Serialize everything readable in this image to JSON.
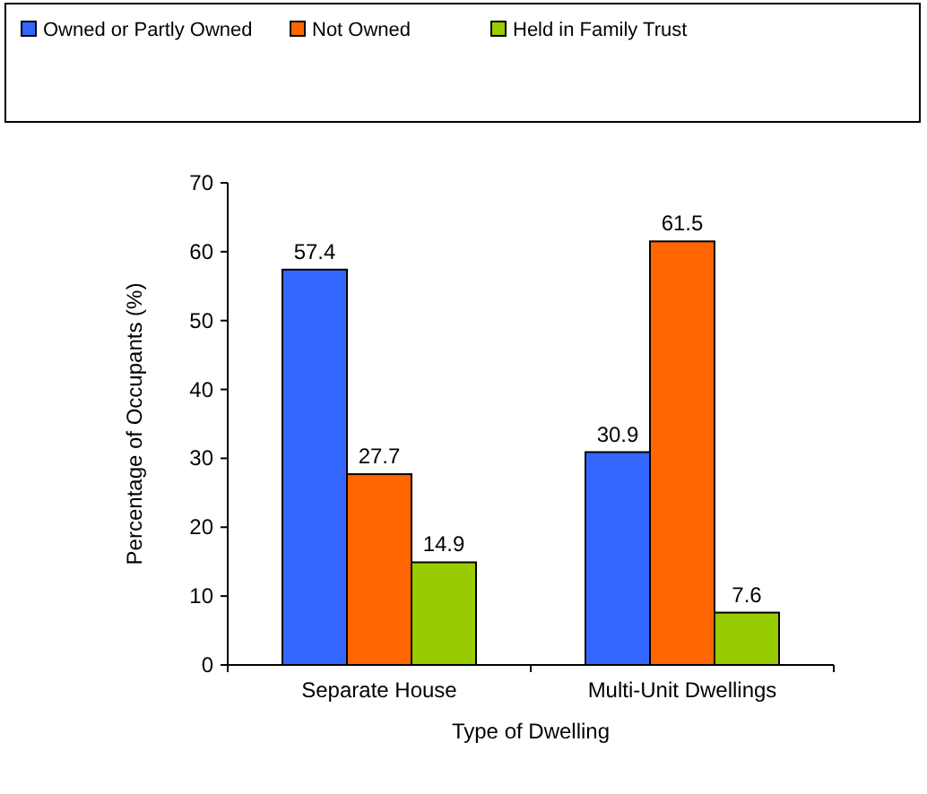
{
  "chart_data": {
    "type": "bar",
    "xlabel": "Type of Dwelling",
    "ylabel": "Percentage of Occupants (%)",
    "categories": [
      "Separate House",
      "Multi-Unit Dwellings"
    ],
    "series": [
      {
        "name": "Owned or Partly Owned",
        "color": "#3366ff",
        "values": [
          57.4,
          30.9
        ]
      },
      {
        "name": "Not Owned",
        "color": "#ff6600",
        "values": [
          27.7,
          61.5
        ]
      },
      {
        "name": "Held in Family Trust",
        "color": "#99cc00",
        "values": [
          14.9,
          7.6
        ]
      }
    ],
    "ylim": [
      0,
      70
    ],
    "yticks": [
      0,
      10,
      20,
      30,
      40,
      50,
      60,
      70
    ],
    "data_labels": true,
    "legend": "top",
    "grid": false
  }
}
